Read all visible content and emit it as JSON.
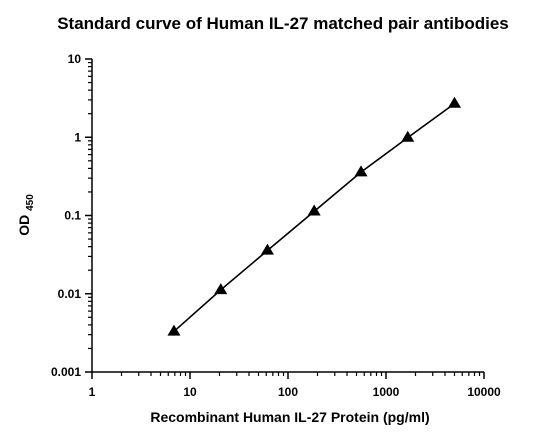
{
  "chart_data": {
    "type": "line",
    "title": "Standard curve of Human IL-27 matched pair antibodies",
    "xlabel": "Recombinant Human IL-27 Protein (pg/ml)",
    "ylabel": {
      "main": "OD",
      "subscript": "450"
    },
    "x_scale": "log",
    "y_scale": "log",
    "xlim": [
      1,
      10000
    ],
    "ylim": [
      0.001,
      10
    ],
    "x_ticks": [
      {
        "value": 1,
        "label": "1"
      },
      {
        "value": 10,
        "label": "10"
      },
      {
        "value": 100,
        "label": "100"
      },
      {
        "value": 1000,
        "label": "1000"
      },
      {
        "value": 10000,
        "label": "10000"
      }
    ],
    "y_ticks": [
      {
        "value": 0.001,
        "label": "0.001"
      },
      {
        "value": 0.01,
        "label": "0.01"
      },
      {
        "value": 0.1,
        "label": "0.1"
      },
      {
        "value": 1,
        "label": "1"
      },
      {
        "value": 10,
        "label": "10"
      }
    ],
    "grid": false,
    "marker": "triangle",
    "line_color": "#000000",
    "marker_color": "#000000",
    "series": [
      {
        "x": [
          6.86,
          20.6,
          61.7,
          185,
          556,
          1667,
          5000
        ],
        "y": [
          0.0033,
          0.0112,
          0.0357,
          0.113,
          0.358,
          0.99,
          2.69
        ]
      }
    ]
  }
}
